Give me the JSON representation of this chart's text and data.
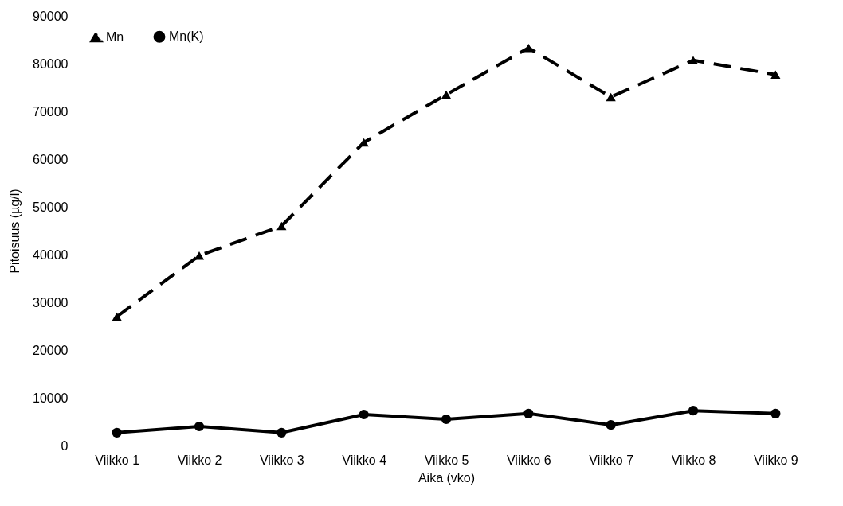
{
  "chart_data": {
    "type": "line",
    "xlabel": "Aika (vko)",
    "ylabel": "Pitoisuus (µg/l)",
    "categories": [
      "Viikko 1",
      "Viikko 2",
      "Viikko 3",
      "Viikko 4",
      "Viikko 5",
      "Viikko 6",
      "Viikko 7",
      "Viikko 8",
      "Viikko 9"
    ],
    "series": [
      {
        "name": "Mn",
        "color": "#000000",
        "marker": "triangle",
        "line_style": "dashed",
        "values": [
          27000,
          39800,
          46000,
          63500,
          73500,
          83300,
          73000,
          80700,
          77700
        ]
      },
      {
        "name": "Mn(K)",
        "color": "#000000",
        "marker": "circle",
        "line_style": "solid",
        "values": [
          2700,
          4000,
          2700,
          6500,
          5500,
          6700,
          4300,
          7300,
          6700
        ]
      }
    ],
    "ylim": [
      0,
      90000
    ],
    "yticks": [
      0,
      10000,
      20000,
      30000,
      40000,
      50000,
      60000,
      70000,
      80000,
      90000
    ],
    "grid": false,
    "legend": "top left"
  }
}
